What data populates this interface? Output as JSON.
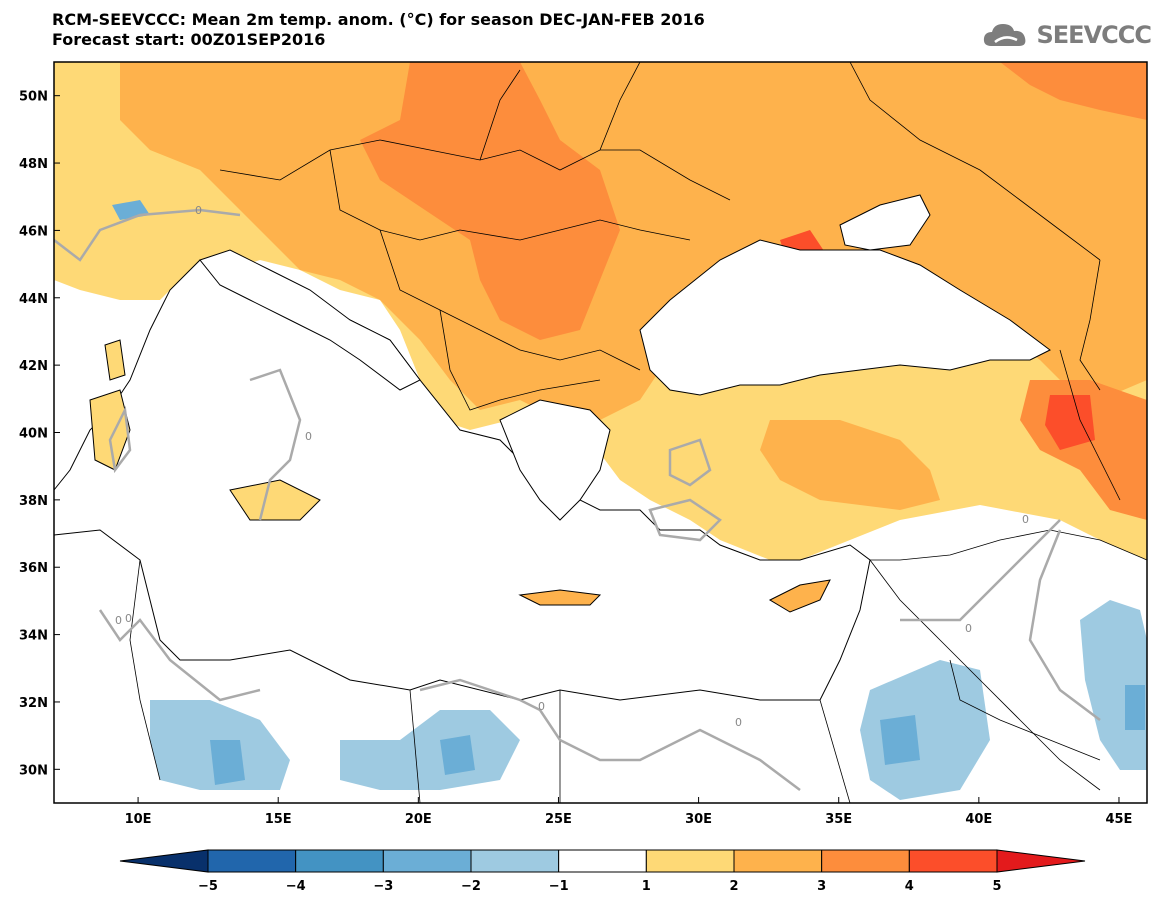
{
  "header": {
    "title_line1": "RCM-SEEVCCC: Mean 2m temp. anom. (°C) for season DEC-JAN-FEB 2016",
    "title_line2": "Forecast start: 00Z01SEP2016"
  },
  "logo": {
    "text": "SEEVCCC",
    "icon": "cloud-icon",
    "color": "#7d7d7d"
  },
  "map": {
    "lon_range": [
      7,
      46
    ],
    "lat_range": [
      29,
      51
    ],
    "lat_ticks": [
      "50N",
      "48N",
      "46N",
      "44N",
      "42N",
      "40N",
      "38N",
      "36N",
      "34N",
      "32N",
      "30N"
    ],
    "lon_ticks": [
      "10E",
      "15E",
      "20E",
      "25E",
      "30E",
      "35E",
      "40E",
      "45E"
    ],
    "contour_label": "0"
  },
  "colorbar": {
    "tick_labels": [
      "−5",
      "−4",
      "−3",
      "−2",
      "−1",
      "1",
      "2",
      "3",
      "4",
      "5"
    ],
    "colors": [
      "#08306b",
      "#2166ac",
      "#4393c3",
      "#6baed6",
      "#9ecae1",
      "#ffffff",
      "#fed976",
      "#feb24c",
      "#fd8d3c",
      "#fc4e2a",
      "#e31a1c"
    ]
  }
}
